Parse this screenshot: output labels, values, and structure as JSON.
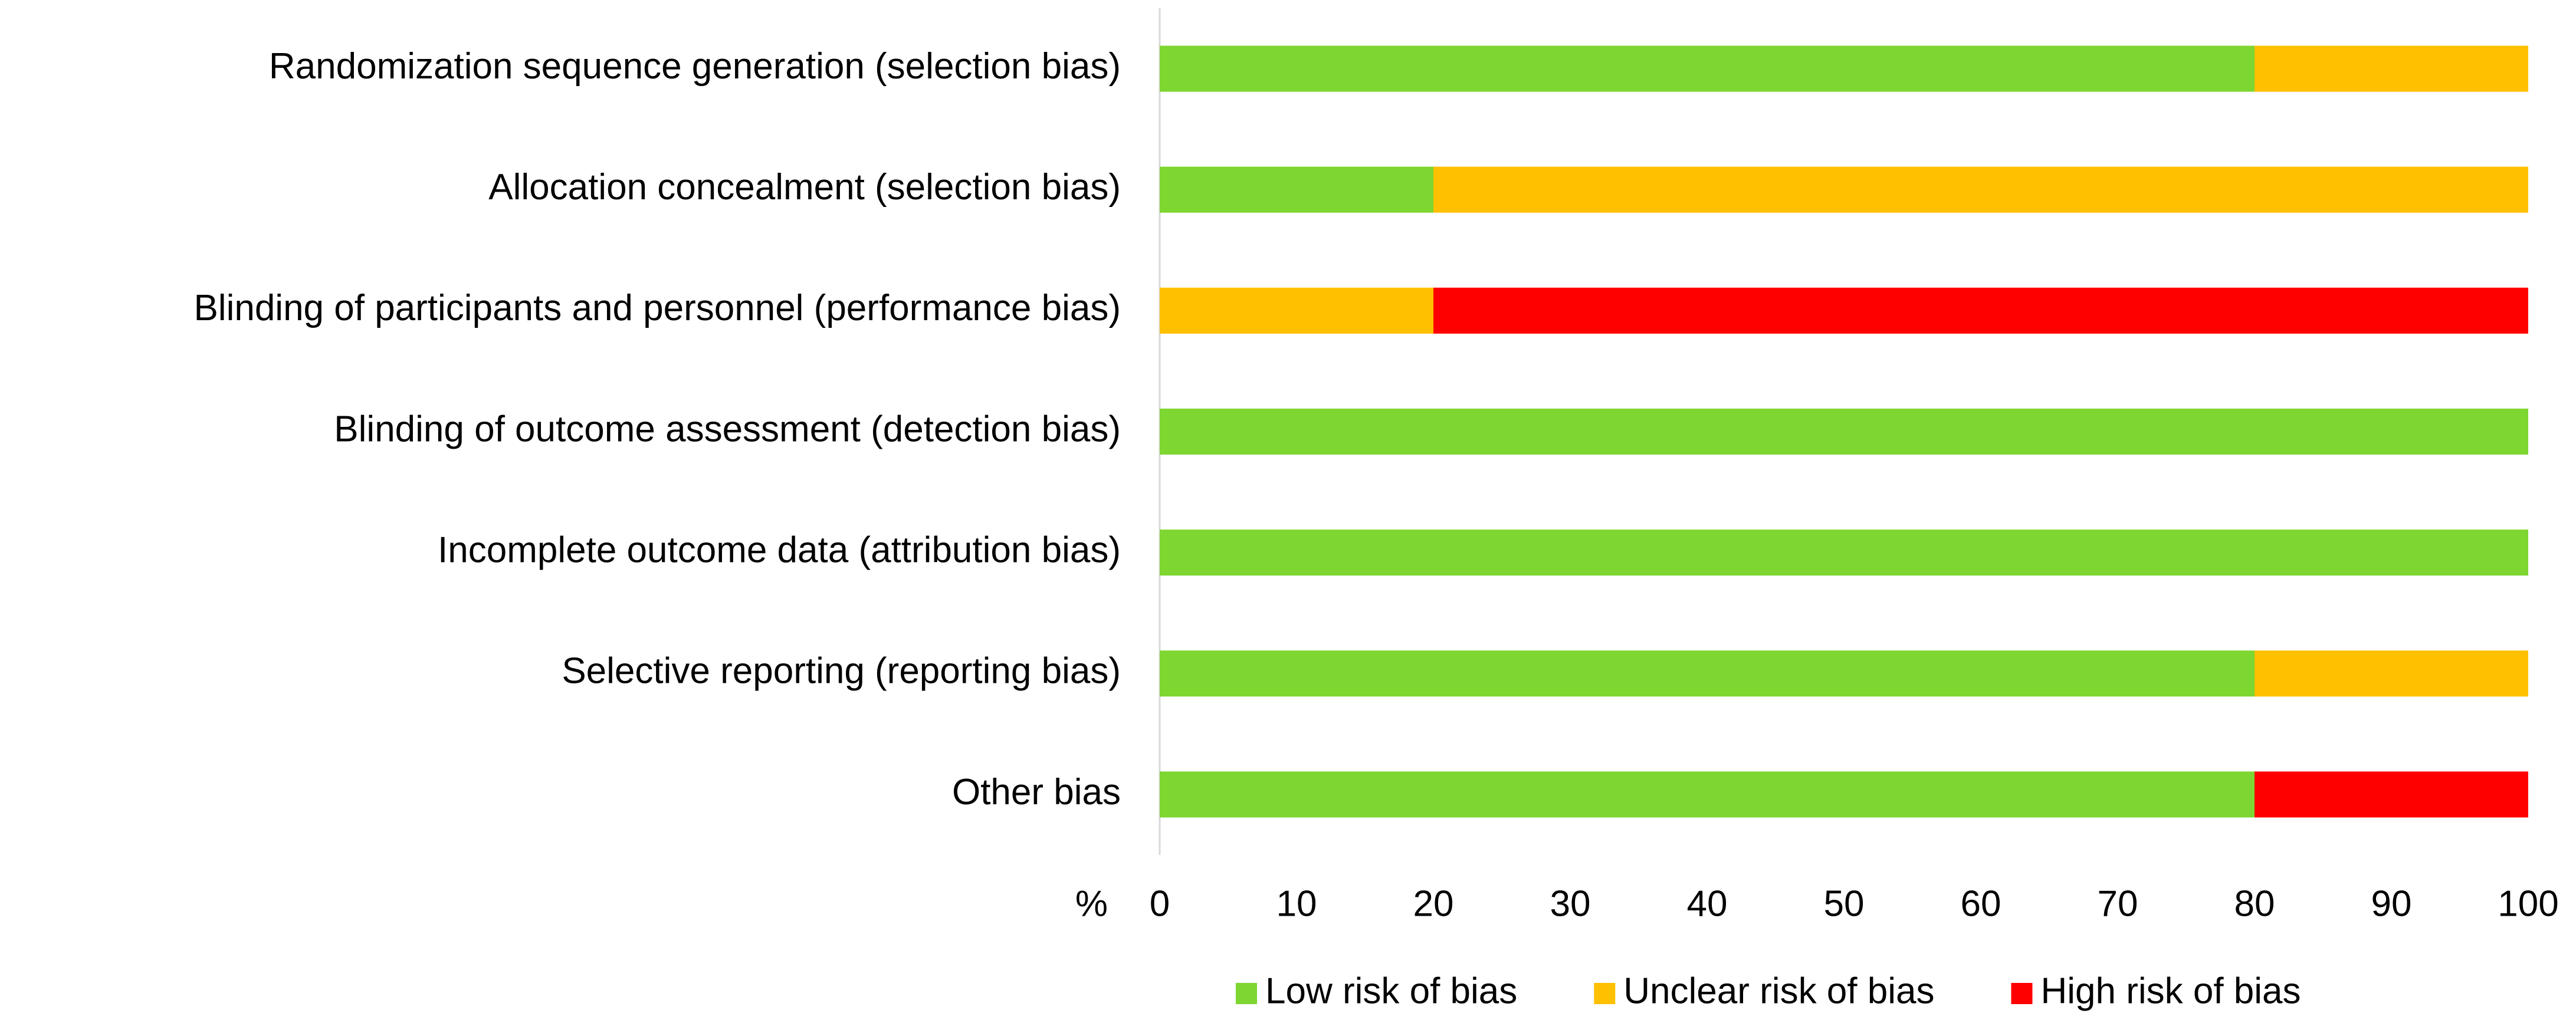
{
  "chart_data": {
    "type": "stacked-barh",
    "x_label": "%",
    "categories": [
      "Randomization sequence generation (selection bias)",
      "Allocation concealment (selection bias)",
      "Blinding of participants and personnel (performance bias)",
      "Blinding of outcome assessment (detection bias)",
      "Incomplete outcome data (attribution bias)",
      "Selective reporting (reporting bias)",
      "Other bias"
    ],
    "series": [
      {
        "name": "Low risk of bias",
        "color": "#7ed631",
        "values": [
          80,
          20,
          0,
          100,
          100,
          80,
          80
        ]
      },
      {
        "name": "Unclear risk of bias",
        "color": "#ffc000",
        "values": [
          20,
          80,
          20,
          0,
          0,
          20,
          0
        ]
      },
      {
        "name": "High risk of bias",
        "color": "#ff0000",
        "values": [
          0,
          0,
          80,
          0,
          0,
          0,
          20
        ]
      }
    ],
    "xlim": [
      0,
      100
    ],
    "xticks": [
      0,
      10,
      20,
      30,
      40,
      50,
      60,
      70,
      80,
      90,
      100
    ],
    "legend": "bottom"
  }
}
